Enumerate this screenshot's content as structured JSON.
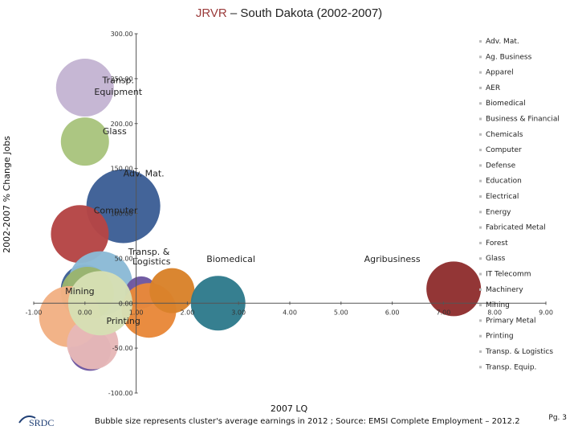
{
  "chart_data": {
    "type": "bubble",
    "title_prefix": "JRVR",
    "title_rest": " – South Dakota (2002-2007)",
    "title_prefix_color": "#9b3b3b",
    "xlabel": "2007 LQ",
    "ylabel": "2002-2007 % Change Jobs",
    "xlim": [
      -1,
      9
    ],
    "ylim": [
      -100,
      300
    ],
    "x_ticks": [
      "-1.00",
      "0.00",
      "1.00",
      "2.00",
      "3.00",
      "4.00",
      "5.00",
      "6.00",
      "7.00",
      "8.00",
      "9.00"
    ],
    "y_ticks": [
      "300.00",
      "250.00",
      "200.00",
      "150.00",
      "100.00",
      "50.00",
      "0.00",
      "-50.00",
      "-100.00"
    ],
    "series": [
      {
        "name": "Transp. Equip.",
        "x": 0.0,
        "y": 240,
        "size": 36,
        "color": "#c4b5d3"
      },
      {
        "name": "Glass",
        "x": 0.0,
        "y": 180,
        "size": 30,
        "color": "#a9c47e"
      },
      {
        "name": "Adv. Mat.",
        "x": 0.75,
        "y": 108,
        "size": 46,
        "color": "#3d5f96"
      },
      {
        "name": "Computer",
        "x": -0.1,
        "y": 77,
        "size": 36,
        "color": "#b54545"
      },
      {
        "name": "Education",
        "x": 0.0,
        "y": 16,
        "size": 30,
        "color": "#3d5f96"
      },
      {
        "name": "IT Telecomm",
        "x": 0.3,
        "y": 22,
        "size": 40,
        "color": "#8bbad6"
      },
      {
        "name": "Apparel",
        "x": 0.05,
        "y": 11,
        "size": 33,
        "color": "#9ab46d"
      },
      {
        "name": "Electrical",
        "x": 0.1,
        "y": -52,
        "size": 26,
        "color": "#6d57a0"
      },
      {
        "name": "Chemicals",
        "x": 1.1,
        "y": 12,
        "size": 20,
        "color": "#6d57a0"
      },
      {
        "name": "Fabricated Metal",
        "x": 1.25,
        "y": -8,
        "size": 34,
        "color": "#e8883a"
      },
      {
        "name": "Energy",
        "x": 1.7,
        "y": 14,
        "size": 28,
        "color": "#d9822a"
      },
      {
        "name": "Biomedical",
        "x": 2.6,
        "y": 0,
        "size": 34,
        "color": "#2f7b8c"
      },
      {
        "name": "Machinery",
        "x": 7.2,
        "y": 16,
        "size": 34,
        "color": "#8f2f2f"
      },
      {
        "name": "Mining",
        "x": -0.3,
        "y": -15,
        "size": 38,
        "color": "#f2b184"
      },
      {
        "name": "Forest",
        "x": 0.15,
        "y": -45,
        "size": 32,
        "color": "#e6b8b8"
      },
      {
        "name": "Printing",
        "x": 0.3,
        "y": 0,
        "size": 40,
        "color": "#d6dfb4"
      }
    ],
    "point_labels": [
      {
        "text": "Transp.",
        "x": 0.65,
        "y": 245
      },
      {
        "text": "Equipment",
        "x": 0.65,
        "y": 232
      },
      {
        "text": "Glass",
        "x": 0.58,
        "y": 188
      },
      {
        "text": "Adv. Mat.",
        "x": 1.15,
        "y": 141
      },
      {
        "text": "Computer",
        "x": 0.6,
        "y": 100
      },
      {
        "text": "Transp. &",
        "x": 1.25,
        "y": 54
      },
      {
        "text": "Logistics",
        "x": 1.3,
        "y": 43
      },
      {
        "text": "Biomedical",
        "x": 2.85,
        "y": 46
      },
      {
        "text": "Agribusiness",
        "x": 6.0,
        "y": 46
      },
      {
        "text": "Mining",
        "x": -0.1,
        "y": 10
      },
      {
        "text": "Printing",
        "x": 0.75,
        "y": -23
      }
    ],
    "legend": [
      "Adv. Mat.",
      "Ag. Business",
      "Apparel",
      "AER",
      "Biomedical",
      "Business & Financial",
      "Chemicals",
      "Computer",
      "Defense",
      "Education",
      "Electrical",
      "Energy",
      "Fabricated Metal",
      "Forest",
      "Glass",
      "IT Telecomm",
      "Machinery",
      "Mining",
      "Primary Metal",
      "Printing",
      "Transp. & Logistics",
      "Transp. Equip."
    ],
    "legend_position": "right"
  },
  "footer": {
    "note": "Bubble size represents cluster's average earnings in 2012 ; Source: EMSI Complete Employment – 2012.2",
    "page": "Pg. 3",
    "logo_text": "SRDC"
  }
}
